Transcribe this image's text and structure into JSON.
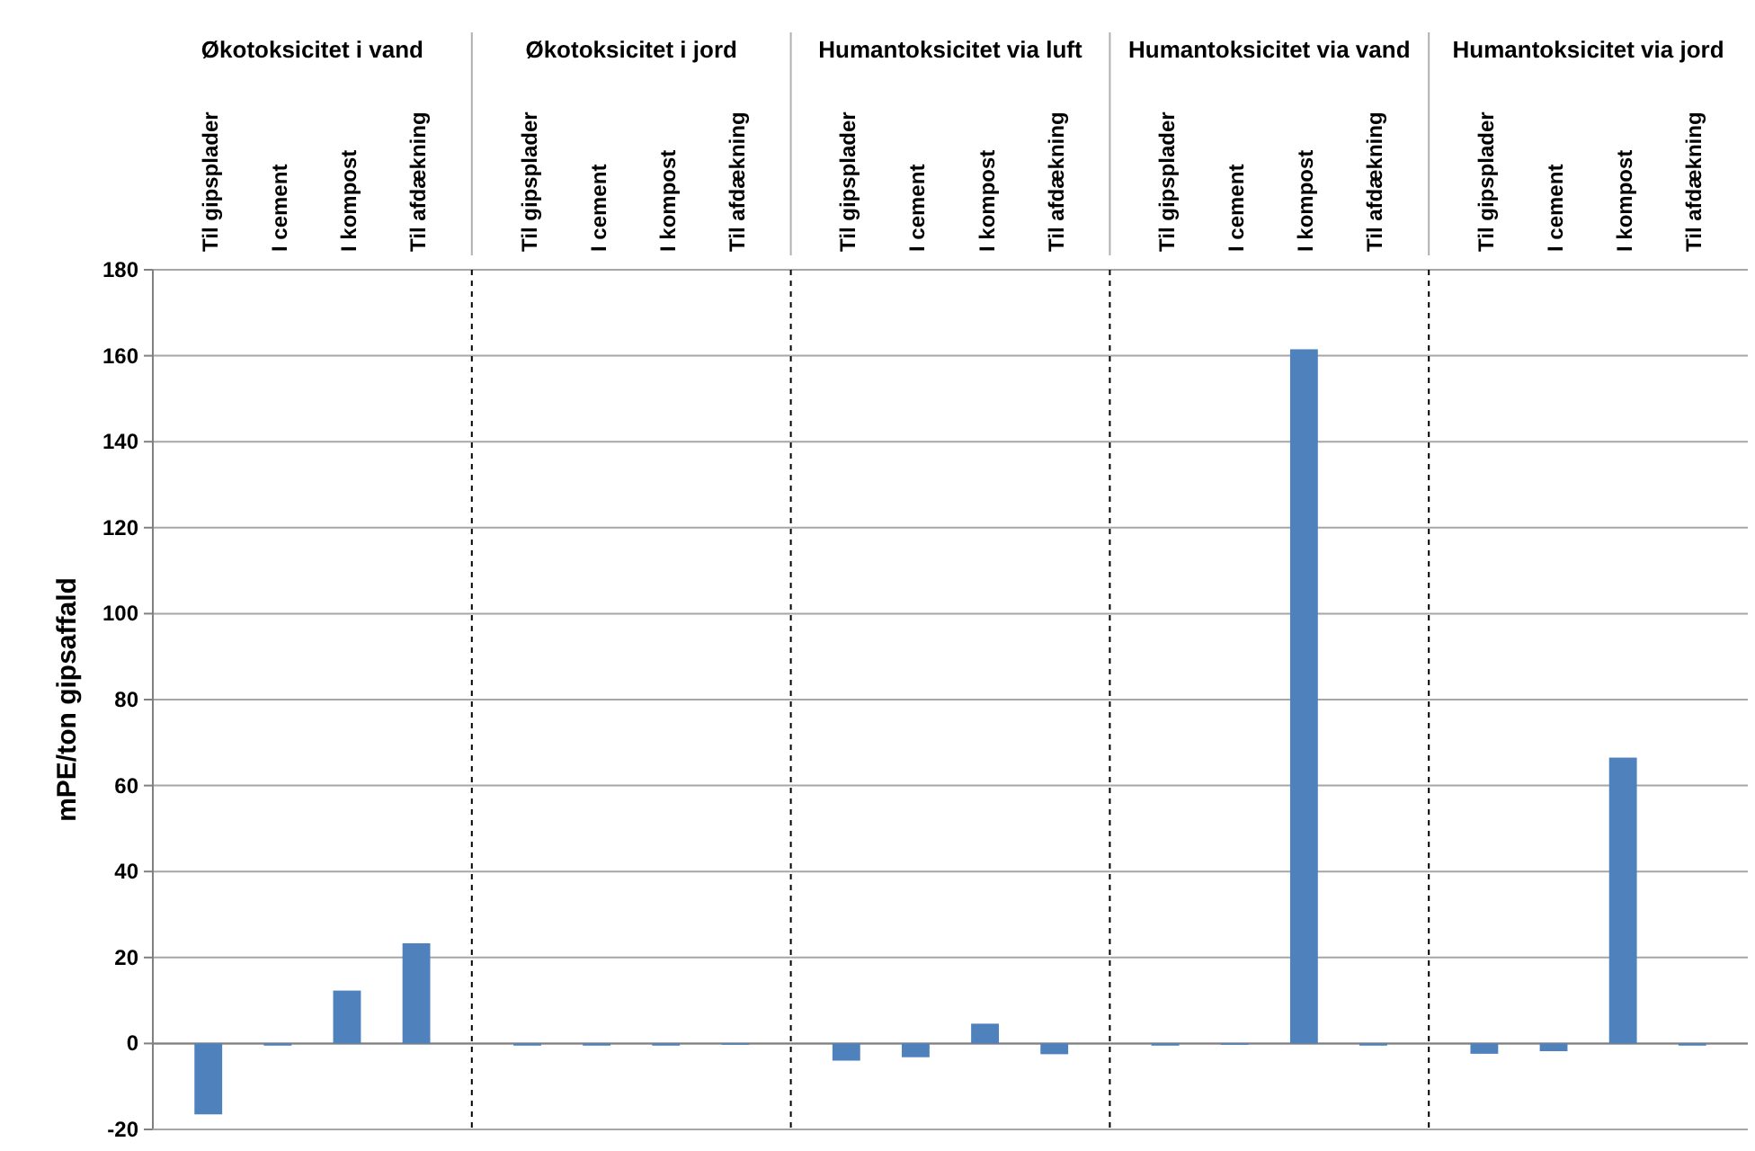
{
  "chart_data": [
    {
      "type": "bar",
      "title": "Økotoksicitet i vand",
      "ylabel": "mPE/ton gipsaffald",
      "categories": [
        "Til gipsplader",
        "I cement",
        "I kompost",
        "Til afdækning"
      ],
      "values": [
        -16.5,
        -0.5,
        12.3,
        23.3
      ],
      "color": "#4f81bd",
      "ylim": [
        -20,
        180
      ],
      "yticks": [
        -20,
        0,
        20,
        40,
        60,
        80,
        100,
        120,
        140,
        160,
        180
      ],
      "grid": "y"
    },
    {
      "type": "bar",
      "title": "Økotoksicitet i jord",
      "categories": [
        "Til gipsplader",
        "I cement",
        "I kompost",
        "Til afdækning"
      ],
      "values": [
        -0.5,
        -0.5,
        -0.5,
        -0.3
      ],
      "color": "#4f81bd",
      "ylim": [
        -20,
        180
      ],
      "yticks": [
        -20,
        0,
        20,
        40,
        60,
        80,
        100,
        120,
        140,
        160,
        180
      ],
      "grid": "y",
      "tick_labels": "x"
    },
    {
      "type": "bar",
      "title": "Humantoksicitet via luft",
      "categories": [
        "Til gipsplader",
        "I cement",
        "I kompost",
        "Til afdækning"
      ],
      "values": [
        -4.0,
        -3.2,
        4.6,
        -2.5
      ],
      "color": "#4f81bd",
      "ylim": [
        -20,
        180
      ],
      "yticks": [
        -20,
        0,
        20,
        40,
        60,
        80,
        100,
        120,
        140,
        160,
        180
      ],
      "grid": "y",
      "tick_labels": "x"
    },
    {
      "type": "bar",
      "title": "Humantoksicitet via vand",
      "categories": [
        "Til gipsplader",
        "I cement",
        "I kompost",
        "Til afdækning"
      ],
      "values": [
        -0.5,
        -0.3,
        161.5,
        -0.5
      ],
      "color": "#4f81bd",
      "ylim": [
        -20,
        180
      ],
      "yticks": [
        -20,
        0,
        20,
        40,
        60,
        80,
        100,
        120,
        140,
        160,
        180
      ],
      "grid": "y",
      "tick_labels": "x"
    },
    {
      "type": "bar",
      "title": "Humantoksicitet via jord",
      "categories": [
        "Til gipsplader",
        "I cement",
        "I kompost",
        "Til afdækning"
      ],
      "values": [
        -2.4,
        -1.8,
        66.5,
        -0.5
      ],
      "color": "#4f81bd",
      "ylim": [
        -20,
        180
      ],
      "yticks": [
        -20,
        0,
        20,
        40,
        60,
        80,
        100,
        120,
        140,
        160,
        180
      ],
      "grid": "y",
      "tick_labels": "x"
    }
  ]
}
